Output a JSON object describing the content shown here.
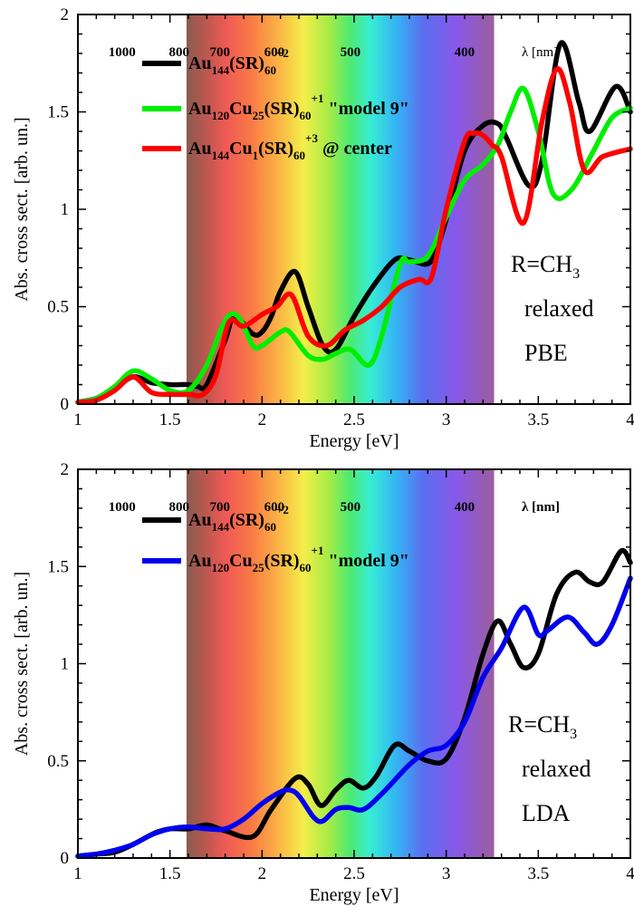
{
  "figure": {
    "panels": [
      {
        "id": "top",
        "xlabel": "Energy [eV]",
        "ylabel": "Abs. cross sect. [arb. un.]",
        "annotations": {
          "line1": "R=CH",
          "line1_sub": "3",
          "line2": "relaxed",
          "line3": "PBE"
        },
        "wavelength_labels": [
          "1000",
          "800",
          "700",
          "600",
          "500",
          "400"
        ],
        "wavelength_unit": "λ [nm]",
        "legend": [
          {
            "parts": [
              [
                "Au",
                "n"
              ],
              [
                "144",
                "sub"
              ],
              [
                "(SR)",
                "n"
              ],
              [
                "60",
                "sub"
              ],
              [
                "+2",
                "sup"
              ]
            ]
          },
          {
            "parts": [
              [
                "Au",
                "n"
              ],
              [
                "120",
                "sub"
              ],
              [
                "Cu",
                "n"
              ],
              [
                "25",
                "sub"
              ],
              [
                "(SR)",
                "n"
              ],
              [
                "60",
                "sub"
              ],
              [
                "+1",
                "sup"
              ],
              [
                " \"model 9\"",
                "n"
              ]
            ]
          },
          {
            "parts": [
              [
                "Au",
                "n"
              ],
              [
                "144",
                "sub"
              ],
              [
                "Cu",
                "n"
              ],
              [
                "1",
                "sub"
              ],
              [
                "(SR)",
                "n"
              ],
              [
                "60",
                "sub"
              ],
              [
                "+3",
                "sup"
              ],
              [
                " @ center",
                "n"
              ]
            ]
          }
        ]
      },
      {
        "id": "bottom",
        "xlabel": "Energy [eV]",
        "ylabel": "Abs. cross sect. [arb. un.]",
        "annotations": {
          "line1": "R=CH",
          "line1_sub": "3",
          "line2": "relaxed",
          "line3": "LDA"
        },
        "wavelength_labels": [
          "1000",
          "800",
          "700",
          "600",
          "500",
          "400"
        ],
        "wavelength_unit": "λ [nm]",
        "legend": [
          {
            "parts": [
              [
                "Au",
                "n"
              ],
              [
                "144",
                "sub"
              ],
              [
                "(SR)",
                "n"
              ],
              [
                "60",
                "sub"
              ],
              [
                "+2",
                "sup"
              ]
            ]
          },
          {
            "parts": [
              [
                "Au",
                "n"
              ],
              [
                "120",
                "sub"
              ],
              [
                "Cu",
                "n"
              ],
              [
                "25",
                "sub"
              ],
              [
                "(SR)",
                "n"
              ],
              [
                "60",
                "sub"
              ],
              [
                "+1",
                "sup"
              ],
              [
                " \"model 9\"",
                "n"
              ]
            ]
          }
        ]
      }
    ]
  },
  "chart_data": [
    {
      "type": "line",
      "panel": "top",
      "xlabel": "Energy [eV]",
      "ylabel": "Abs. cross sect. [arb. un.]",
      "xlim": [
        1,
        4
      ],
      "ylim": [
        0,
        2
      ],
      "x_ticks": [
        1,
        1.5,
        2,
        2.5,
        3,
        3.5,
        4
      ],
      "x_tick_labels": [
        "1",
        "1.5",
        "2",
        "2.5",
        "3",
        "3.5",
        "4"
      ],
      "y_ticks": [
        0,
        0.5,
        1,
        1.5,
        2
      ],
      "y_tick_labels": [
        "0",
        "0.5",
        "1",
        "1.5",
        "2"
      ],
      "visible_spectrum_band_ev": [
        1.59,
        3.26
      ],
      "wavelength_marks_nm": [
        1000,
        800,
        700,
        600,
        500,
        400
      ],
      "series": [
        {
          "label": "Au144(SR)60 +2",
          "color": "#000000",
          "x": [
            1.0,
            1.1,
            1.2,
            1.3,
            1.4,
            1.5,
            1.6,
            1.65,
            1.7,
            1.8,
            1.85,
            1.95,
            2.0,
            2.05,
            2.1,
            2.18,
            2.25,
            2.33,
            2.4,
            2.5,
            2.6,
            2.72,
            2.8,
            2.9,
            2.95,
            3.0,
            3.1,
            3.2,
            3.28,
            3.33,
            3.45,
            3.52,
            3.62,
            3.72,
            3.78,
            3.92,
            4.0
          ],
          "y": [
            0.01,
            0.03,
            0.08,
            0.14,
            0.11,
            0.1,
            0.1,
            0.09,
            0.1,
            0.33,
            0.45,
            0.36,
            0.37,
            0.45,
            0.58,
            0.68,
            0.5,
            0.3,
            0.28,
            0.45,
            0.6,
            0.74,
            0.74,
            0.72,
            0.8,
            0.95,
            1.3,
            1.43,
            1.44,
            1.36,
            1.12,
            1.25,
            1.85,
            1.55,
            1.4,
            1.63,
            1.5
          ]
        },
        {
          "label": "Au120Cu25(SR)60 +1 \"model 9\"",
          "color": "#00ee00",
          "x": [
            1.0,
            1.1,
            1.2,
            1.3,
            1.4,
            1.5,
            1.6,
            1.7,
            1.8,
            1.87,
            1.95,
            2.0,
            2.1,
            2.15,
            2.25,
            2.33,
            2.4,
            2.48,
            2.58,
            2.65,
            2.75,
            2.8,
            2.9,
            3.0,
            3.1,
            3.2,
            3.28,
            3.35,
            3.42,
            3.5,
            3.58,
            3.68,
            3.8,
            3.9,
            4.0
          ],
          "y": [
            0.01,
            0.03,
            0.09,
            0.17,
            0.13,
            0.07,
            0.07,
            0.2,
            0.43,
            0.45,
            0.3,
            0.3,
            0.37,
            0.37,
            0.25,
            0.23,
            0.26,
            0.28,
            0.2,
            0.35,
            0.72,
            0.73,
            0.76,
            0.96,
            1.15,
            1.23,
            1.33,
            1.5,
            1.62,
            1.4,
            1.08,
            1.1,
            1.3,
            1.47,
            1.52
          ]
        },
        {
          "label": "Au144Cu1(SR)60 +3 @ center",
          "color": "#ff0000",
          "x": [
            1.0,
            1.1,
            1.2,
            1.3,
            1.4,
            1.5,
            1.6,
            1.68,
            1.75,
            1.82,
            1.9,
            2.0,
            2.08,
            2.16,
            2.25,
            2.35,
            2.45,
            2.55,
            2.65,
            2.75,
            2.85,
            2.92,
            3.0,
            3.1,
            3.15,
            3.2,
            3.25,
            3.3,
            3.42,
            3.52,
            3.6,
            3.67,
            3.75,
            3.85,
            4.0
          ],
          "y": [
            0.01,
            0.02,
            0.07,
            0.14,
            0.06,
            0.05,
            0.05,
            0.05,
            0.15,
            0.42,
            0.4,
            0.46,
            0.5,
            0.56,
            0.35,
            0.3,
            0.38,
            0.43,
            0.5,
            0.6,
            0.64,
            0.65,
            1.0,
            1.35,
            1.39,
            1.38,
            1.33,
            1.27,
            0.93,
            1.45,
            1.72,
            1.55,
            1.2,
            1.27,
            1.31
          ]
        }
      ]
    },
    {
      "type": "line",
      "panel": "bottom",
      "xlabel": "Energy [eV]",
      "ylabel": "Abs. cross sect. [arb. un.]",
      "xlim": [
        1,
        4
      ],
      "ylim": [
        0,
        2
      ],
      "x_ticks": [
        1,
        1.5,
        2,
        2.5,
        3,
        3.5,
        4
      ],
      "x_tick_labels": [
        "1",
        "1.5",
        "2",
        "2.5",
        "3",
        "3.5",
        "4"
      ],
      "y_ticks": [
        0,
        0.5,
        1,
        1.5,
        2
      ],
      "y_tick_labels": [
        "0",
        "0.5",
        "1",
        "1.5",
        "2"
      ],
      "visible_spectrum_band_ev": [
        1.59,
        3.26
      ],
      "wavelength_marks_nm": [
        1000,
        800,
        700,
        600,
        500,
        400
      ],
      "series": [
        {
          "label": "Au144(SR)60 +2",
          "color": "#000000",
          "x": [
            1.0,
            1.1,
            1.2,
            1.3,
            1.42,
            1.5,
            1.6,
            1.7,
            1.8,
            1.95,
            2.05,
            2.18,
            2.25,
            2.32,
            2.4,
            2.47,
            2.55,
            2.62,
            2.72,
            2.8,
            2.9,
            3.0,
            3.1,
            3.2,
            3.28,
            3.35,
            3.42,
            3.5,
            3.6,
            3.7,
            3.78,
            3.85,
            3.95,
            4.0
          ],
          "y": [
            0.01,
            0.02,
            0.03,
            0.07,
            0.13,
            0.15,
            0.15,
            0.17,
            0.14,
            0.11,
            0.25,
            0.41,
            0.38,
            0.27,
            0.35,
            0.4,
            0.36,
            0.42,
            0.58,
            0.55,
            0.5,
            0.51,
            0.72,
            1.05,
            1.22,
            1.1,
            0.98,
            1.05,
            1.36,
            1.47,
            1.42,
            1.42,
            1.58,
            1.52
          ]
        },
        {
          "label": "Au120Cu25(SR)60 +1 \"model 9\"",
          "color": "#0000ee",
          "x": [
            1.0,
            1.1,
            1.2,
            1.3,
            1.4,
            1.5,
            1.6,
            1.7,
            1.8,
            1.9,
            2.0,
            2.1,
            2.15,
            2.2,
            2.28,
            2.33,
            2.4,
            2.47,
            2.55,
            2.65,
            2.8,
            2.9,
            3.0,
            3.1,
            3.2,
            3.3,
            3.42,
            3.5,
            3.55,
            3.66,
            3.75,
            3.82,
            3.9,
            4.0
          ],
          "y": [
            0.01,
            0.02,
            0.04,
            0.07,
            0.12,
            0.15,
            0.16,
            0.15,
            0.15,
            0.2,
            0.28,
            0.34,
            0.35,
            0.32,
            0.21,
            0.19,
            0.25,
            0.26,
            0.25,
            0.33,
            0.48,
            0.55,
            0.58,
            0.7,
            0.93,
            1.08,
            1.29,
            1.15,
            1.17,
            1.24,
            1.16,
            1.1,
            1.2,
            1.44
          ]
        }
      ]
    }
  ]
}
